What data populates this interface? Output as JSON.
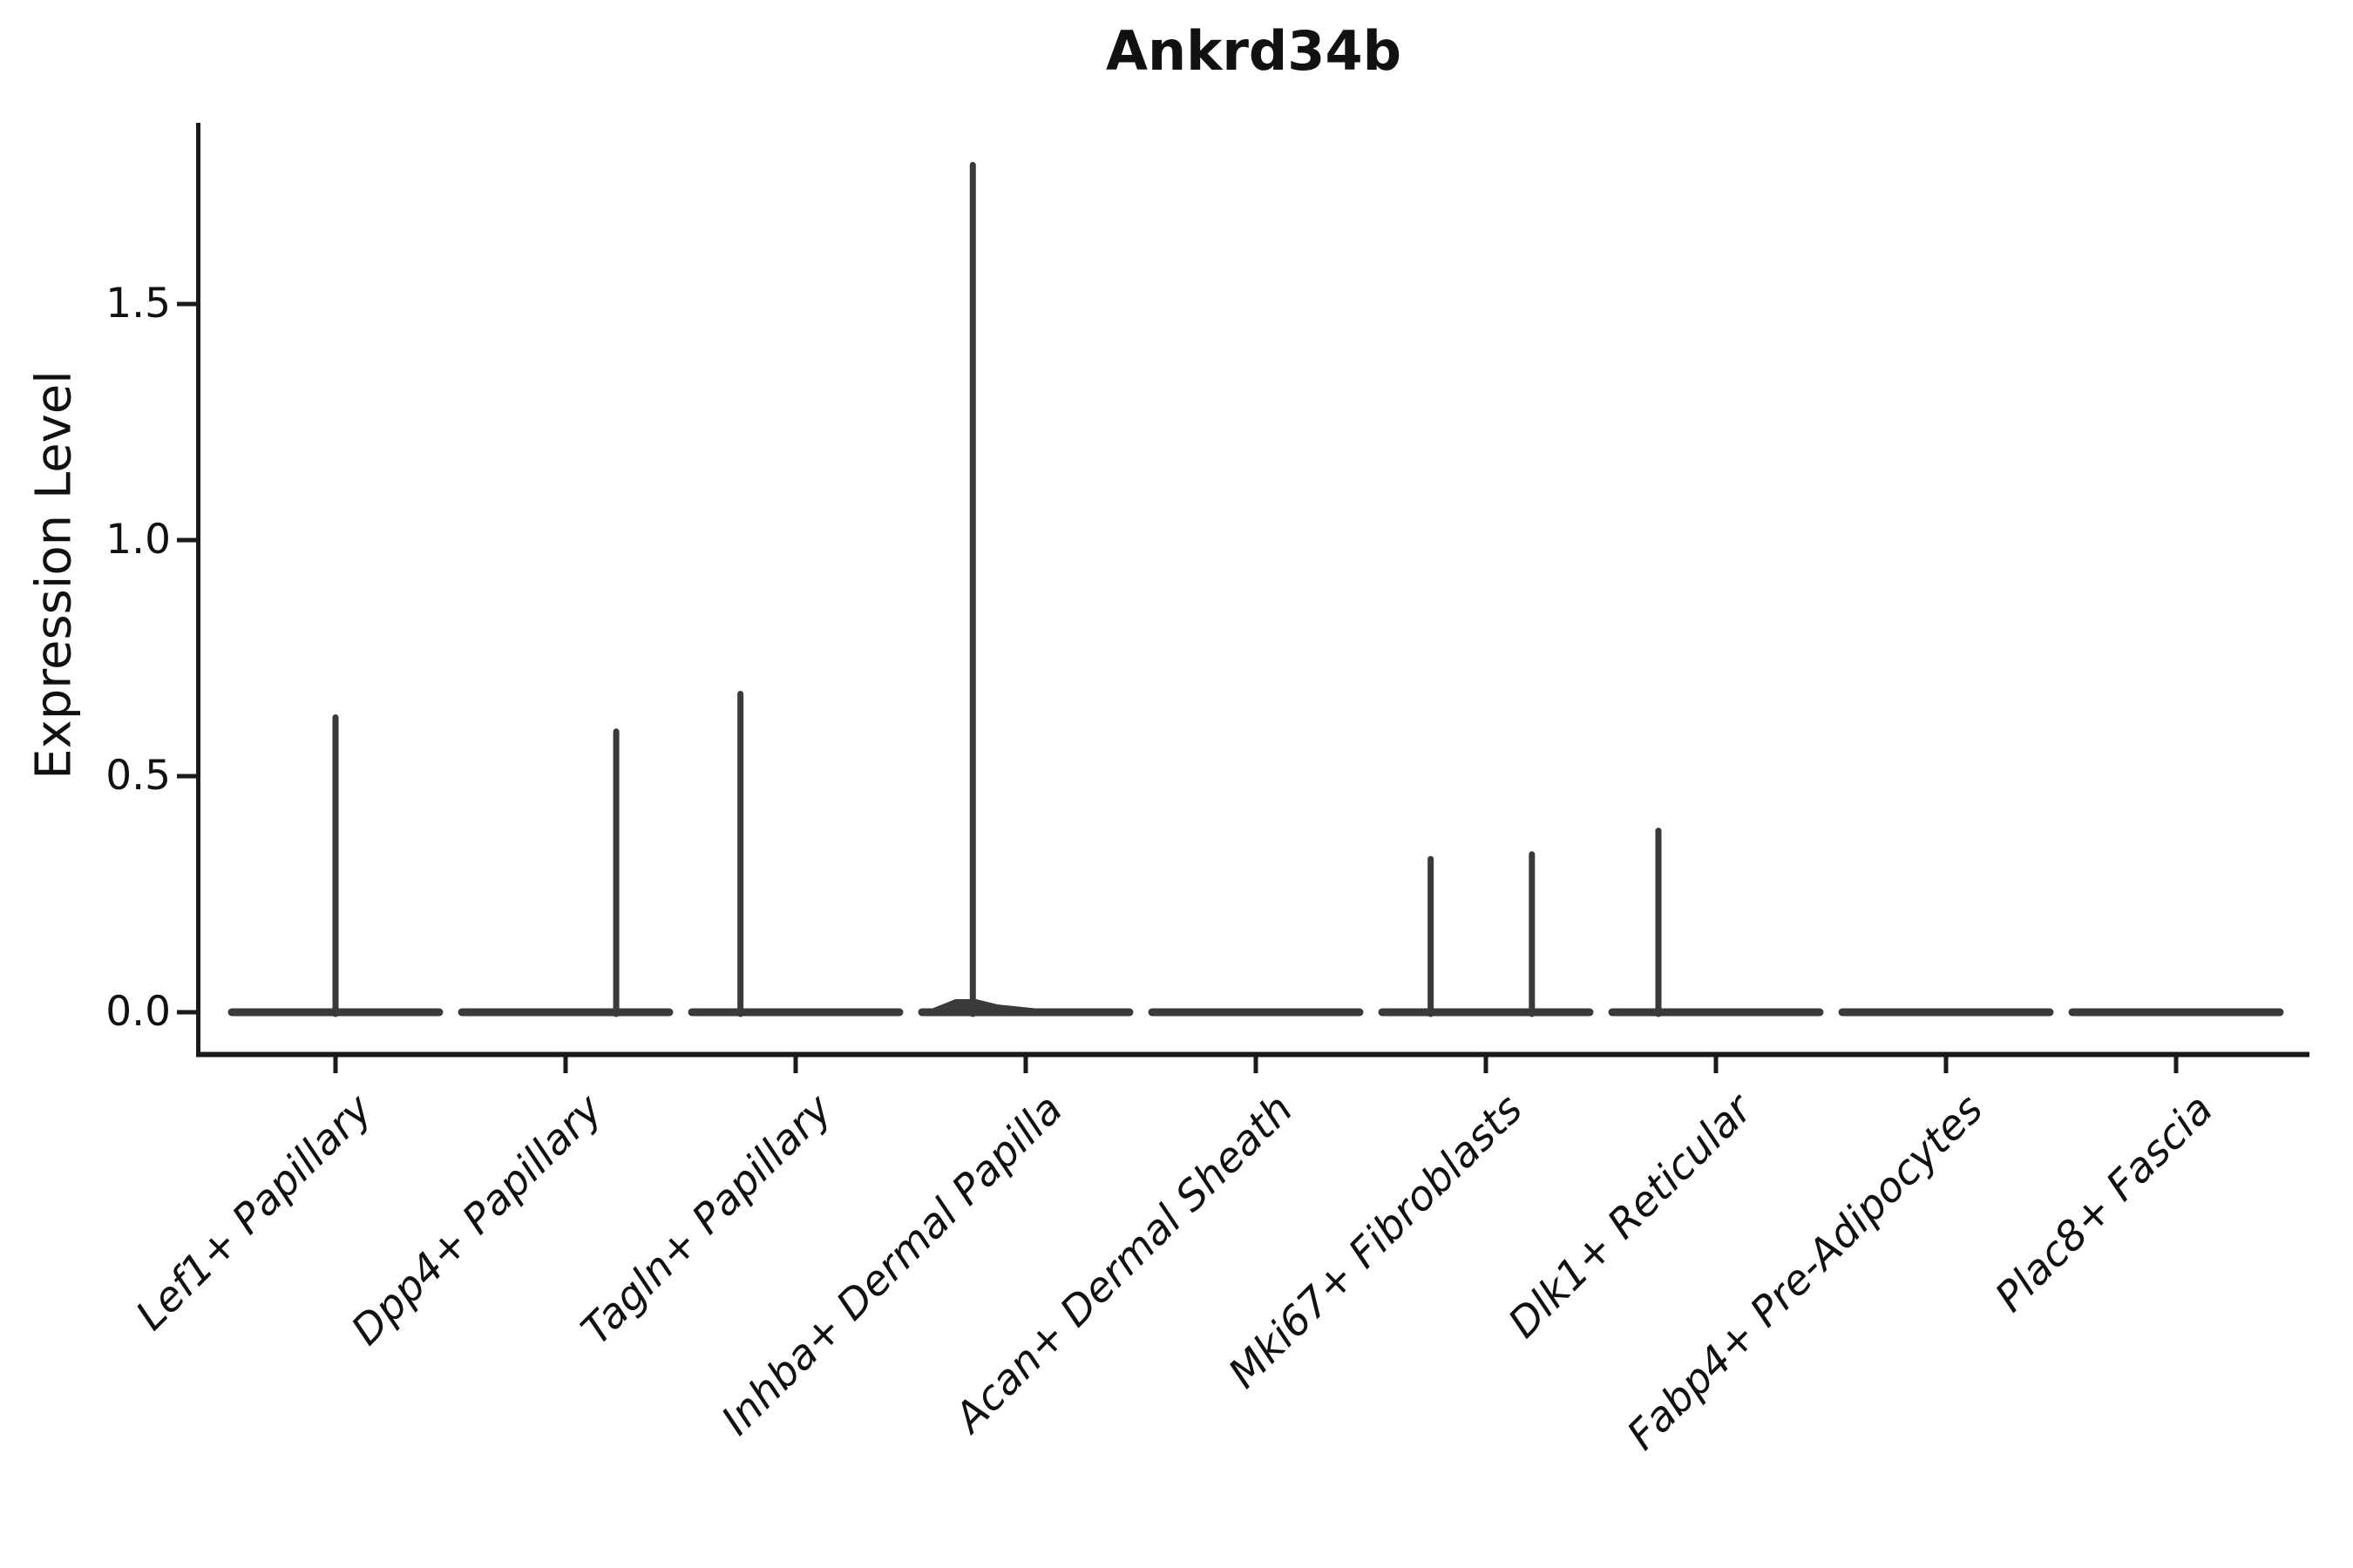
{
  "title": "Ankrd34b",
  "y_axis": {
    "label": "Expression Level",
    "ticks": [
      {
        "label": "0.0",
        "value": 0.0
      },
      {
        "label": "0.5",
        "value": 0.5
      },
      {
        "label": "1.0",
        "value": 1.0
      },
      {
        "label": "1.5",
        "value": 1.5
      }
    ]
  },
  "colors": {
    "violin": "#3a3a3a",
    "axis": "#1a1a1a",
    "text": "#111111",
    "background": "#ffffff"
  },
  "chart_data": {
    "type": "violin",
    "title": "Ankrd34b",
    "xlabel": "",
    "ylabel": "Expression Level",
    "ylim": [
      -0.09,
      1.88
    ],
    "y_ticks": [
      0.0,
      0.5,
      1.0,
      1.5
    ],
    "grid": false,
    "legend": "none",
    "description": "Single-gene violin plot; each cell type shows a flat density pancake at expression 0 with thin vertical density spikes reaching the maximum expression of the few expressing cells.",
    "categories": [
      "Lef1+ Papillary",
      "Dpp4+ Papillary",
      "Tagln+ Papillary",
      "Inhba+ Dermal Papilla",
      "Acan+ Dermal Sheath",
      "Mki67+ Fibroblasts",
      "Dlk1+ Reticular",
      "Fabp4+ Pre-Adipocytes",
      "Plac8+ Fascia"
    ],
    "violins": [
      {
        "category": "Lef1+ Papillary",
        "baseline_value": 0.0,
        "max_expression": 0.63,
        "spikes": [
          {
            "offset": 0.0,
            "value": 0.63
          }
        ],
        "base_bulge": false
      },
      {
        "category": "Dpp4+ Papillary",
        "baseline_value": 0.0,
        "max_expression": 0.6,
        "spikes": [
          {
            "offset": 0.22,
            "value": 0.6
          }
        ],
        "base_bulge": false
      },
      {
        "category": "Tagln+ Papillary",
        "baseline_value": 0.0,
        "max_expression": 0.68,
        "spikes": [
          {
            "offset": -0.24,
            "value": 0.68
          }
        ],
        "base_bulge": false
      },
      {
        "category": "Inhba+ Dermal Papilla",
        "baseline_value": 0.0,
        "max_expression": 1.8,
        "spikes": [
          {
            "offset": -0.23,
            "value": 1.8
          }
        ],
        "base_bulge": true
      },
      {
        "category": "Acan+ Dermal Sheath",
        "baseline_value": 0.0,
        "max_expression": 0.0,
        "spikes": [],
        "base_bulge": false
      },
      {
        "category": "Mki67+ Fibroblasts",
        "baseline_value": 0.0,
        "max_expression": 0.34,
        "spikes": [
          {
            "offset": -0.24,
            "value": 0.33
          },
          {
            "offset": 0.2,
            "value": 0.34
          }
        ],
        "base_bulge": false
      },
      {
        "category": "Dlk1+ Reticular",
        "baseline_value": 0.0,
        "max_expression": 0.39,
        "spikes": [
          {
            "offset": -0.25,
            "value": 0.39
          }
        ],
        "base_bulge": false
      },
      {
        "category": "Fabp4+ Pre-Adipocytes",
        "baseline_value": 0.0,
        "max_expression": 0.0,
        "spikes": [],
        "base_bulge": false
      },
      {
        "category": "Plac8+ Fascia",
        "baseline_value": 0.0,
        "max_expression": 0.0,
        "spikes": [],
        "base_bulge": false
      }
    ]
  }
}
